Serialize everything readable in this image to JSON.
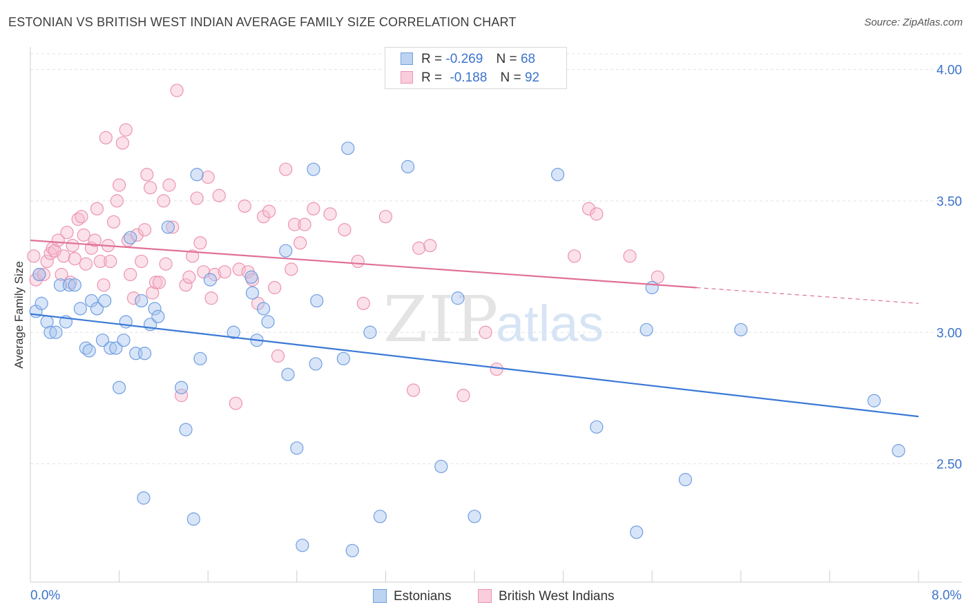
{
  "title": "ESTONIAN VS BRITISH WEST INDIAN AVERAGE FAMILY SIZE CORRELATION CHART",
  "source": "Source: ZipAtlas.com",
  "watermark": {
    "zip": "ZIP",
    "atlas": "atlas"
  },
  "legend_top": [
    {
      "r_label": "R =",
      "r_value": "-0.269",
      "n_label": "N =",
      "n_value": "68"
    },
    {
      "r_label": "R =",
      "r_value": "-0.188",
      "n_label": "N =",
      "n_value": "92"
    }
  ],
  "legend_bottom": [
    "Estonians",
    "British West Indians"
  ],
  "x_tick_labels": {
    "min": "0.0%",
    "max": "8.0%"
  },
  "colors": {
    "estonians_fill": "#a9c6ef",
    "estonians_stroke": "#6f9ee0",
    "estonians_line": "#3a78d6",
    "bwi_fill": "#f6bccf",
    "bwi_stroke": "#ec93b1",
    "bwi_line": "#e07098",
    "tick_label": "#3b73cc",
    "grid": "#e2e2e2"
  },
  "chart_data": {
    "type": "scatter",
    "title": "ESTONIAN VS BRITISH WEST INDIAN AVERAGE FAMILY SIZE CORRELATION CHART",
    "xlabel": "",
    "ylabel": "Average Family Size",
    "xlim": [
      0,
      8
    ],
    "ylim": [
      2.05,
      4.08
    ],
    "y_ticks": [
      2.5,
      3.0,
      3.5,
      4.0
    ],
    "y_tick_labels": [
      "2.50",
      "3.00",
      "3.50",
      "4.00"
    ],
    "series": [
      {
        "name": "Estonians",
        "r": -0.269,
        "n": 68,
        "trend": {
          "x0": 0.0,
          "y0": 3.07,
          "x1": 8.0,
          "y1": 2.68
        },
        "points": [
          [
            0.05,
            3.08
          ],
          [
            0.1,
            3.11
          ],
          [
            0.15,
            3.04
          ],
          [
            0.18,
            3.0
          ],
          [
            0.23,
            3.0
          ],
          [
            0.27,
            3.18
          ],
          [
            0.32,
            3.04
          ],
          [
            0.35,
            3.18
          ],
          [
            0.4,
            3.18
          ],
          [
            0.45,
            3.09
          ],
          [
            0.5,
            2.94
          ],
          [
            0.53,
            2.93
          ],
          [
            0.55,
            3.12
          ],
          [
            0.6,
            3.09
          ],
          [
            0.65,
            2.97
          ],
          [
            0.67,
            3.12
          ],
          [
            0.72,
            2.94
          ],
          [
            0.77,
            2.94
          ],
          [
            0.8,
            2.79
          ],
          [
            0.84,
            2.97
          ],
          [
            0.86,
            3.04
          ],
          [
            0.9,
            3.36
          ],
          [
            0.95,
            2.92
          ],
          [
            1.0,
            3.12
          ],
          [
            1.03,
            2.92
          ],
          [
            1.08,
            3.03
          ],
          [
            1.12,
            3.09
          ],
          [
            1.15,
            3.06
          ],
          [
            1.24,
            3.4
          ],
          [
            1.36,
            2.79
          ],
          [
            1.4,
            2.63
          ],
          [
            1.47,
            2.29
          ],
          [
            1.5,
            3.6
          ],
          [
            1.53,
            2.9
          ],
          [
            1.62,
            3.2
          ],
          [
            1.83,
            3.0
          ],
          [
            1.99,
            3.21
          ],
          [
            2.0,
            3.15
          ],
          [
            2.04,
            2.97
          ],
          [
            2.1,
            3.09
          ],
          [
            2.14,
            3.04
          ],
          [
            2.3,
            3.31
          ],
          [
            2.32,
            2.84
          ],
          [
            2.4,
            2.56
          ],
          [
            2.45,
            2.19
          ],
          [
            2.55,
            3.62
          ],
          [
            2.57,
            2.88
          ],
          [
            2.58,
            3.12
          ],
          [
            2.82,
            2.9
          ],
          [
            2.86,
            3.7
          ],
          [
            2.9,
            2.17
          ],
          [
            3.06,
            3.0
          ],
          [
            3.15,
            2.3
          ],
          [
            3.4,
            3.63
          ],
          [
            3.7,
            2.49
          ],
          [
            3.85,
            3.13
          ],
          [
            4.0,
            2.3
          ],
          [
            4.75,
            3.6
          ],
          [
            5.1,
            2.64
          ],
          [
            5.46,
            2.24
          ],
          [
            5.55,
            3.01
          ],
          [
            5.6,
            3.17
          ],
          [
            5.9,
            2.44
          ],
          [
            6.4,
            3.01
          ],
          [
            7.6,
            2.74
          ],
          [
            7.82,
            2.55
          ],
          [
            1.02,
            2.37
          ],
          [
            0.08,
            3.22
          ]
        ]
      },
      {
        "name": "British West Indians",
        "r": -0.188,
        "n": 92,
        "trend": {
          "x0": 0.0,
          "y0": 3.35,
          "x1": 8.0,
          "y1": 3.11,
          "solid_until_x": 6.0
        },
        "points": [
          [
            0.05,
            3.2
          ],
          [
            0.08,
            3.22
          ],
          [
            0.12,
            3.22
          ],
          [
            0.15,
            3.27
          ],
          [
            0.18,
            3.3
          ],
          [
            0.2,
            3.32
          ],
          [
            0.22,
            3.31
          ],
          [
            0.25,
            3.35
          ],
          [
            0.28,
            3.22
          ],
          [
            0.3,
            3.29
          ],
          [
            0.33,
            3.38
          ],
          [
            0.36,
            3.19
          ],
          [
            0.38,
            3.33
          ],
          [
            0.4,
            3.28
          ],
          [
            0.43,
            3.43
          ],
          [
            0.46,
            3.44
          ],
          [
            0.48,
            3.37
          ],
          [
            0.5,
            3.26
          ],
          [
            0.55,
            3.32
          ],
          [
            0.58,
            3.35
          ],
          [
            0.6,
            3.47
          ],
          [
            0.63,
            3.27
          ],
          [
            0.66,
            3.18
          ],
          [
            0.68,
            3.74
          ],
          [
            0.7,
            3.33
          ],
          [
            0.72,
            3.27
          ],
          [
            0.75,
            3.42
          ],
          [
            0.78,
            3.5
          ],
          [
            0.8,
            3.56
          ],
          [
            0.83,
            3.72
          ],
          [
            0.86,
            3.77
          ],
          [
            0.88,
            3.35
          ],
          [
            0.9,
            3.22
          ],
          [
            0.93,
            3.13
          ],
          [
            0.96,
            3.37
          ],
          [
            1.0,
            3.27
          ],
          [
            1.03,
            3.39
          ],
          [
            1.05,
            3.6
          ],
          [
            1.08,
            3.55
          ],
          [
            1.1,
            3.15
          ],
          [
            1.13,
            3.19
          ],
          [
            1.16,
            3.19
          ],
          [
            1.2,
            3.5
          ],
          [
            1.22,
            3.26
          ],
          [
            1.25,
            3.56
          ],
          [
            1.28,
            3.4
          ],
          [
            1.32,
            3.92
          ],
          [
            1.36,
            2.76
          ],
          [
            1.4,
            3.18
          ],
          [
            1.43,
            3.21
          ],
          [
            1.46,
            3.29
          ],
          [
            1.5,
            3.51
          ],
          [
            1.53,
            3.34
          ],
          [
            1.56,
            3.23
          ],
          [
            1.6,
            3.59
          ],
          [
            1.63,
            3.13
          ],
          [
            1.66,
            3.22
          ],
          [
            1.7,
            3.52
          ],
          [
            1.75,
            3.23
          ],
          [
            1.85,
            2.73
          ],
          [
            1.88,
            3.24
          ],
          [
            1.93,
            3.48
          ],
          [
            1.96,
            3.23
          ],
          [
            2.0,
            3.2
          ],
          [
            2.05,
            3.11
          ],
          [
            2.1,
            3.44
          ],
          [
            2.15,
            3.46
          ],
          [
            2.2,
            3.17
          ],
          [
            2.23,
            2.91
          ],
          [
            2.3,
            3.62
          ],
          [
            2.35,
            3.24
          ],
          [
            2.38,
            3.41
          ],
          [
            2.43,
            3.34
          ],
          [
            2.47,
            3.41
          ],
          [
            2.55,
            3.47
          ],
          [
            2.7,
            3.45
          ],
          [
            2.83,
            3.39
          ],
          [
            2.95,
            3.27
          ],
          [
            3.0,
            3.11
          ],
          [
            3.2,
            3.44
          ],
          [
            3.45,
            2.78
          ],
          [
            3.5,
            3.32
          ],
          [
            3.6,
            3.33
          ],
          [
            3.9,
            2.76
          ],
          [
            4.1,
            3.0
          ],
          [
            4.2,
            2.86
          ],
          [
            4.9,
            3.29
          ],
          [
            5.03,
            3.47
          ],
          [
            5.1,
            3.45
          ],
          [
            5.4,
            3.29
          ],
          [
            5.65,
            3.21
          ],
          [
            0.03,
            3.29
          ]
        ]
      }
    ]
  }
}
